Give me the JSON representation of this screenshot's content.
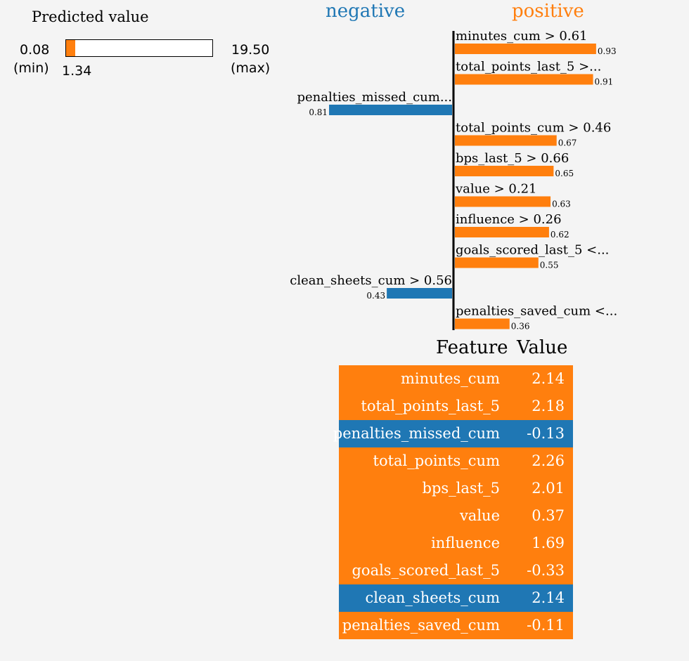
{
  "predicted": {
    "title": "Predicted value",
    "min": "0.08",
    "min_label": "(min)",
    "max": "19.50",
    "max_label": "(max)",
    "value": "1.34",
    "value_num": 1.34,
    "min_num": 0.08,
    "max_num": 19.5
  },
  "chart_data": {
    "type": "bar",
    "neg_label": "negative",
    "pos_label": "positive",
    "colors": {
      "positive": "#ff7f0e",
      "negative": "#1f77b4"
    },
    "bars": [
      {
        "label": "minutes_cum > 0.61",
        "value": 0.93,
        "value_text": "0.93",
        "sign": "positive"
      },
      {
        "label": "total_points_last_5 >...",
        "value": 0.91,
        "value_text": "0.91",
        "sign": "positive"
      },
      {
        "label": "penalties_missed_cum...",
        "value": 0.81,
        "value_text": "0.81",
        "sign": "negative"
      },
      {
        "label": "total_points_cum > 0.46",
        "value": 0.67,
        "value_text": "0.67",
        "sign": "positive"
      },
      {
        "label": "bps_last_5 > 0.66",
        "value": 0.65,
        "value_text": "0.65",
        "sign": "positive"
      },
      {
        "label": "value > 0.21",
        "value": 0.63,
        "value_text": "0.63",
        "sign": "positive"
      },
      {
        "label": "influence > 0.26",
        "value": 0.62,
        "value_text": "0.62",
        "sign": "positive"
      },
      {
        "label": "goals_scored_last_5 <...",
        "value": 0.55,
        "value_text": "0.55",
        "sign": "positive"
      },
      {
        "label": "clean_sheets_cum > 0.56",
        "value": 0.43,
        "value_text": "0.43",
        "sign": "negative"
      },
      {
        "label": "penalties_saved_cum <...",
        "value": 0.36,
        "value_text": "0.36",
        "sign": "positive"
      }
    ]
  },
  "table": {
    "header_feature": "Feature",
    "header_value": "Value",
    "rows": [
      {
        "feature": "minutes_cum",
        "value": "2.14",
        "sign": "positive"
      },
      {
        "feature": "total_points_last_5",
        "value": "2.18",
        "sign": "positive"
      },
      {
        "feature": "penalties_missed_cum",
        "value": "-0.13",
        "sign": "negative"
      },
      {
        "feature": "total_points_cum",
        "value": "2.26",
        "sign": "positive"
      },
      {
        "feature": "bps_last_5",
        "value": "2.01",
        "sign": "positive"
      },
      {
        "feature": "value",
        "value": "0.37",
        "sign": "positive"
      },
      {
        "feature": "influence",
        "value": "1.69",
        "sign": "positive"
      },
      {
        "feature": "goals_scored_last_5",
        "value": "-0.33",
        "sign": "positive"
      },
      {
        "feature": "clean_sheets_cum",
        "value": "2.14",
        "sign": "negative"
      },
      {
        "feature": "penalties_saved_cum",
        "value": "-0.11",
        "sign": "positive"
      }
    ]
  }
}
